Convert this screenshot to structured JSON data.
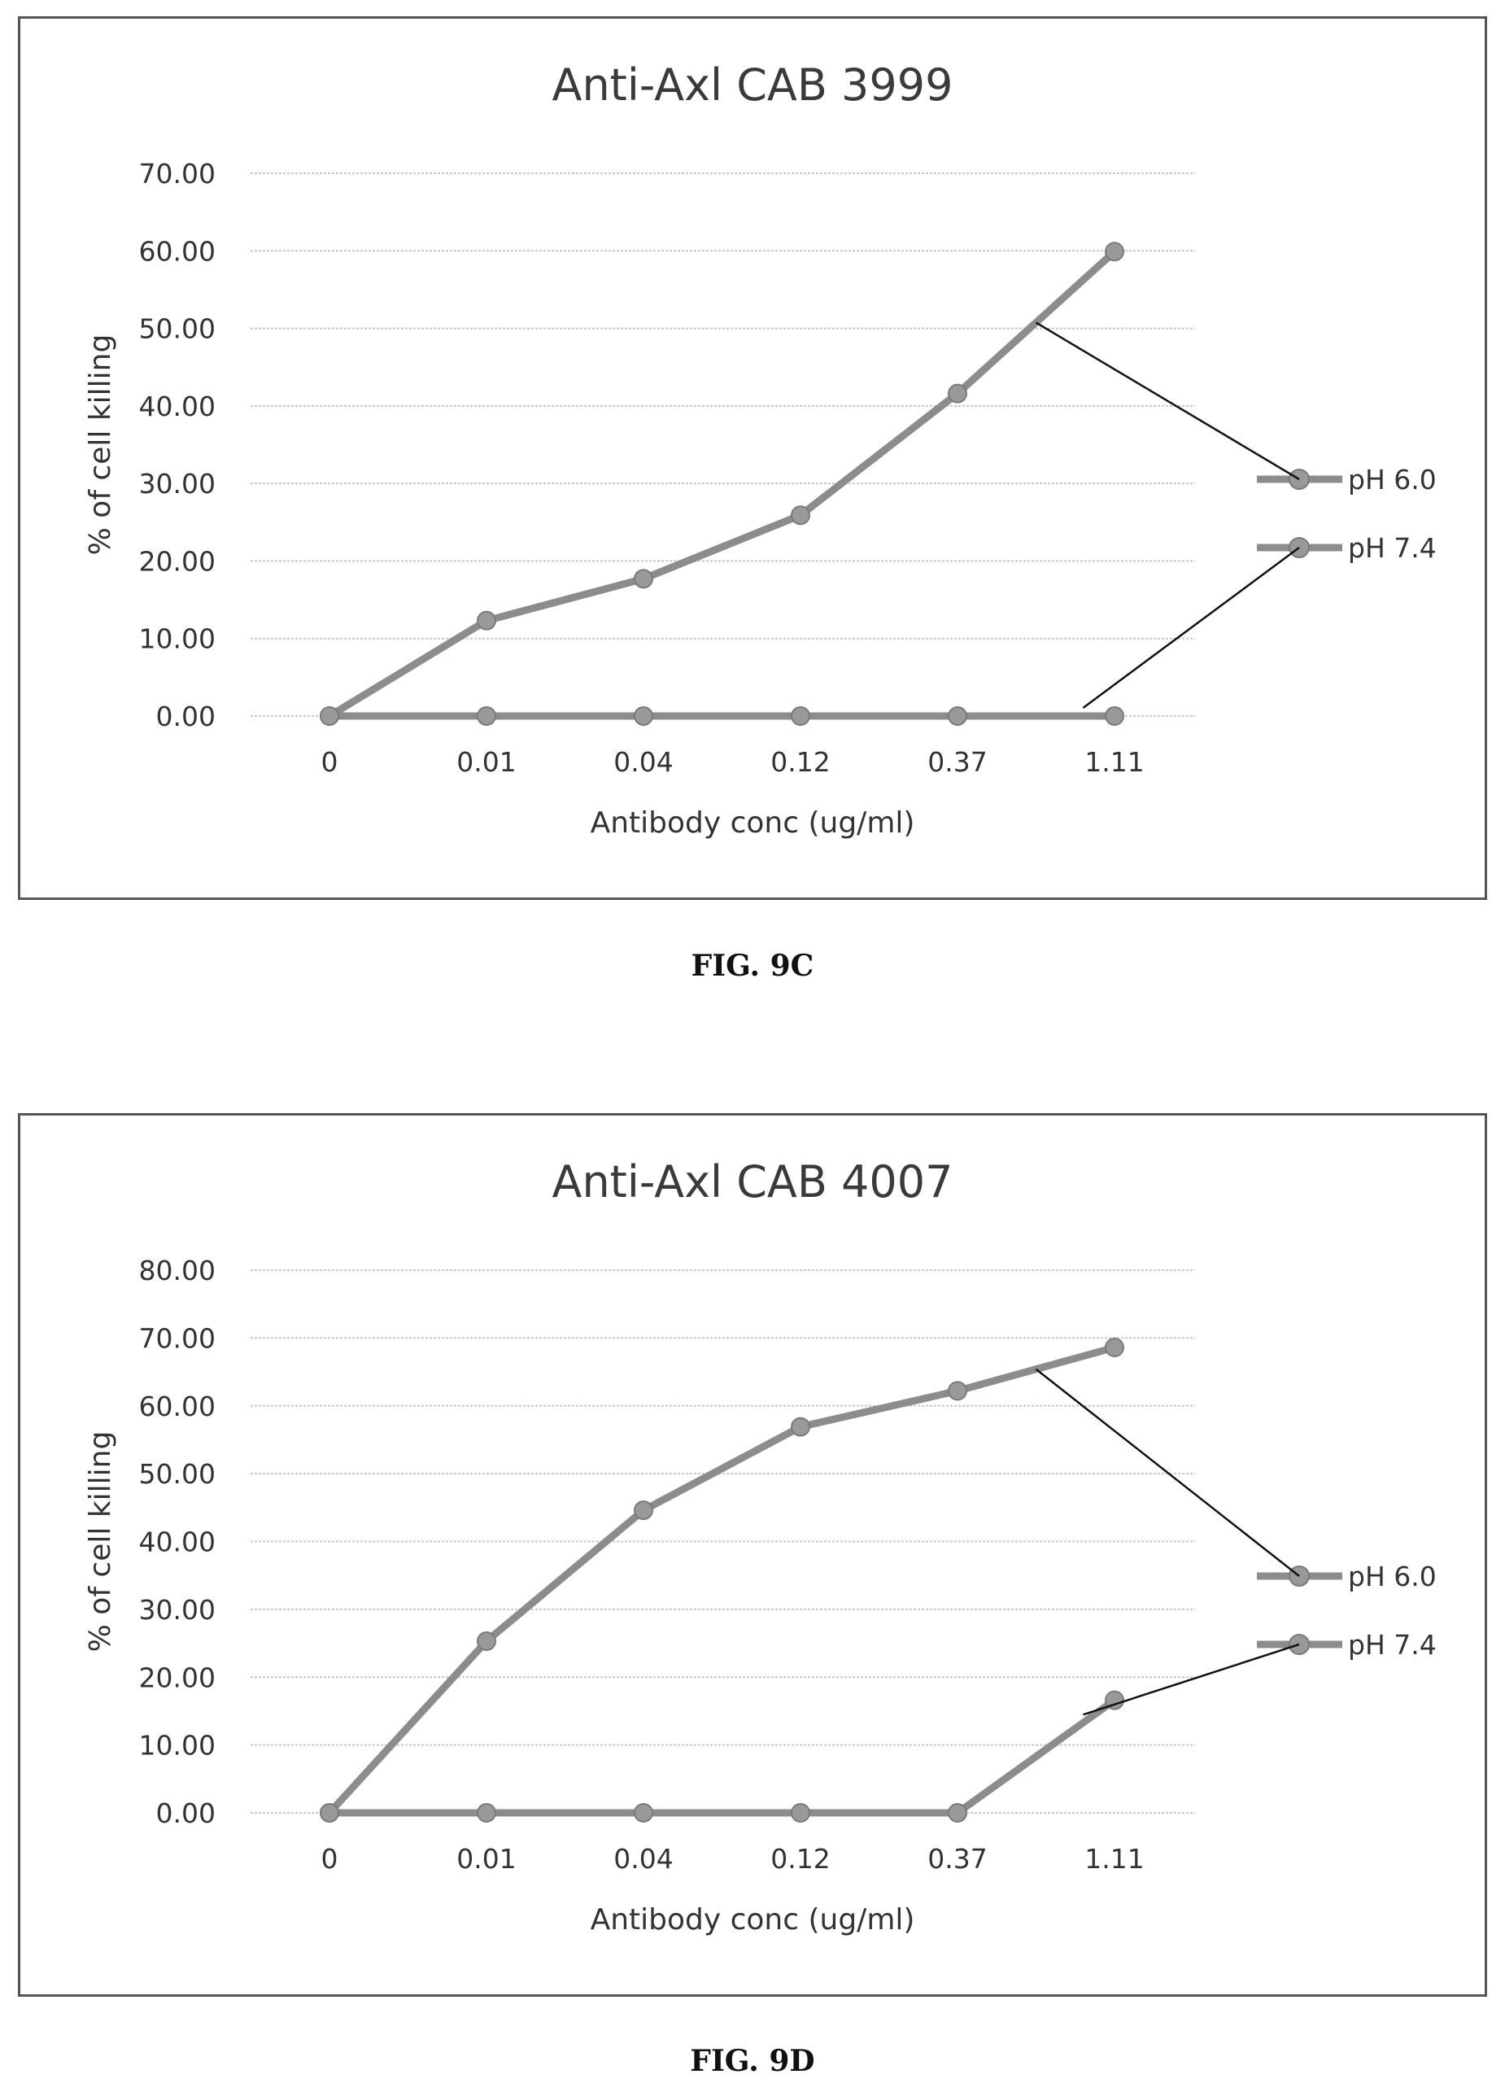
{
  "figures": [
    {
      "caption": "FIG. 9C",
      "chart_data": {
        "type": "line",
        "title": "Anti-Axl CAB 3999",
        "xlabel": "Antibody conc (ug/ml)",
        "ylabel": "% of cell killing",
        "categories": [
          "0",
          "0.01",
          "0.04",
          "0.12",
          "0.37",
          "1.11"
        ],
        "yticks": [
          "0.00",
          "10.00",
          "20.00",
          "30.00",
          "40.00",
          "50.00",
          "60.00",
          "70.00"
        ],
        "ylim": [
          0,
          70
        ],
        "grid": true,
        "legend_position": "right",
        "series": [
          {
            "name": "pH 6.0",
            "values": [
              0,
              12.3,
              17.7,
              25.9,
              41.6,
              59.9
            ]
          },
          {
            "name": "pH 7.4",
            "values": [
              0,
              0,
              0,
              0,
              0,
              0
            ]
          }
        ]
      }
    },
    {
      "caption": "FIG. 9D",
      "chart_data": {
        "type": "line",
        "title": "Anti-Axl CAB 4007",
        "xlabel": "Antibody conc (ug/ml)",
        "ylabel": "% of cell killing",
        "categories": [
          "0",
          "0.01",
          "0.04",
          "0.12",
          "0.37",
          "1.11"
        ],
        "yticks": [
          "0.00",
          "10.00",
          "20.00",
          "30.00",
          "40.00",
          "50.00",
          "60.00",
          "70.00",
          "80.00"
        ],
        "ylim": [
          0,
          80
        ],
        "grid": true,
        "legend_position": "right",
        "series": [
          {
            "name": "pH 6.0",
            "values": [
              0,
              25.3,
              44.6,
              56.9,
              62.2,
              68.6
            ]
          },
          {
            "name": "pH 7.4",
            "values": [
              0,
              0,
              0,
              0,
              0,
              16.6
            ]
          }
        ]
      }
    }
  ],
  "style": {
    "series_color": "#8c8c8c",
    "marker_color": "#999999",
    "grid_color": "#c8c8c8",
    "leader_color": "#111111"
  }
}
